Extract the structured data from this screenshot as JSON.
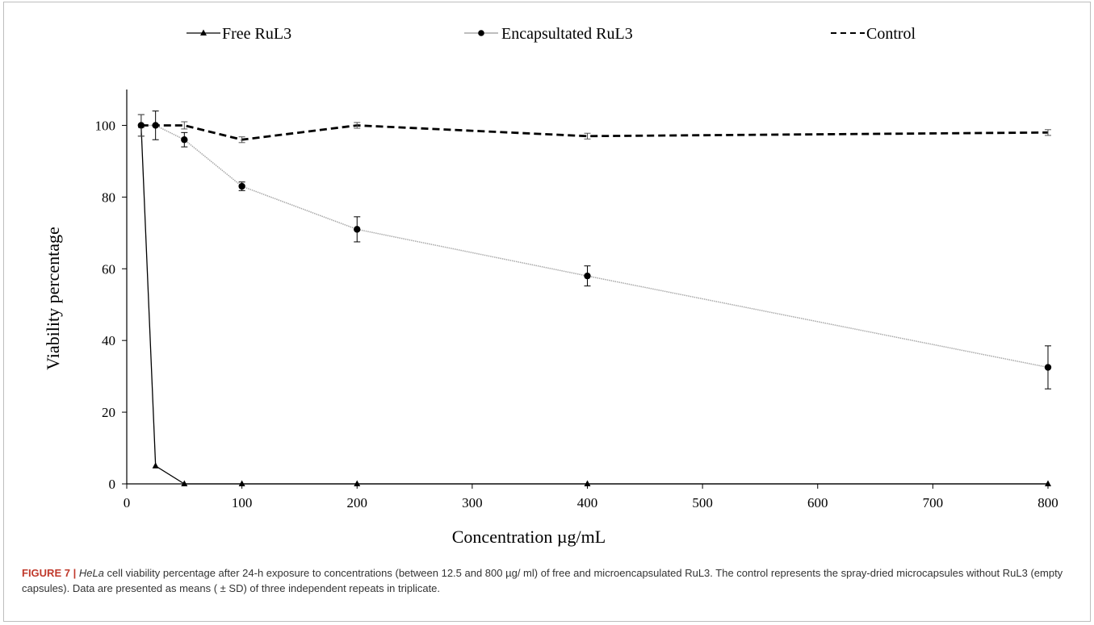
{
  "chart_data": {
    "type": "line",
    "xlabel": "Concentration µg/mL",
    "ylabel": "Viability  percentage",
    "xlim": [
      0,
      800
    ],
    "ylim": [
      0,
      110
    ],
    "xticks": [
      0,
      100,
      200,
      300,
      400,
      500,
      600,
      700,
      800
    ],
    "yticks": [
      0,
      20,
      40,
      60,
      80,
      100
    ],
    "legend_position": "top",
    "grid": false,
    "series": [
      {
        "name": "Free RuL3",
        "marker": "triangle",
        "style": "solid",
        "color": "#000000",
        "x": [
          12.5,
          25,
          50,
          100,
          200,
          400,
          800
        ],
        "y": [
          100,
          5,
          0,
          0,
          0,
          0,
          0
        ],
        "err": [
          3,
          0,
          0,
          0,
          0,
          0,
          0
        ]
      },
      {
        "name": "Encapsultated RuL3",
        "marker": "circle",
        "style": "dotted-gray",
        "color": "#9a9a9a",
        "x": [
          12.5,
          25,
          50,
          100,
          200,
          400,
          800
        ],
        "y": [
          100,
          100,
          96,
          83,
          71,
          58,
          32.5
        ],
        "err": [
          3,
          4,
          2,
          1.2,
          3.5,
          2.8,
          6
        ]
      },
      {
        "name": "Control",
        "marker": "none",
        "style": "dashed",
        "color": "#000000",
        "x": [
          12.5,
          25,
          50,
          100,
          200,
          400,
          800
        ],
        "y": [
          100,
          100,
          100,
          96,
          100,
          97,
          98
        ],
        "err": [
          0,
          0,
          1,
          0.8,
          0.8,
          0.8,
          0.8
        ]
      }
    ]
  },
  "caption": {
    "label": "FIGURE 7 |",
    "italic": "HeLa",
    "text": " cell viability percentage after 24-h exposure to concentrations (between 12.5 and 800 µg/ ml) of free and microencapsulated RuL3. The control represents the spray-dried microcapsules without RuL3 (empty capsules). Data are presented as means ( ± SD) of three independent repeats in triplicate."
  }
}
